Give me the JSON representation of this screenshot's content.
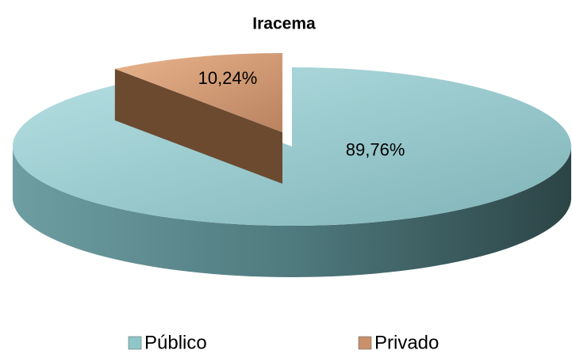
{
  "chart_data": {
    "type": "pie",
    "title": "Iracema",
    "categories": [
      "Público",
      "Privado"
    ],
    "values": [
      89.76,
      10.24
    ],
    "value_labels": [
      "89,76%",
      "10,24%"
    ],
    "colors": [
      "#8fc6ca",
      "#c8916a"
    ],
    "legend": "bottom"
  }
}
